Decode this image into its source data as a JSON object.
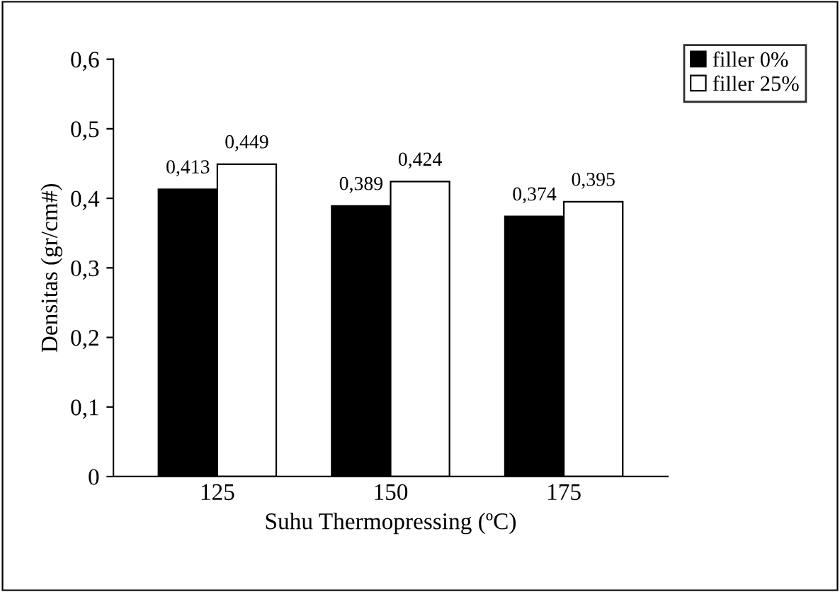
{
  "chart_data": {
    "type": "bar",
    "xlabel": "Suhu Thermopressing (ºC)",
    "ylabel": "Densitas (gr/cm#)",
    "categories": [
      "125",
      "150",
      "175"
    ],
    "series": [
      {
        "name": "filler 0%",
        "color": "#000000",
        "values": [
          0.413,
          0.389,
          0.374
        ],
        "value_labels": [
          "0,413",
          "0,389",
          "0,374"
        ]
      },
      {
        "name": "filler 25%",
        "color": "#ffffff",
        "values": [
          0.449,
          0.424,
          0.395
        ],
        "value_labels": [
          "0,449",
          "0,424",
          "0,395"
        ]
      }
    ],
    "ylim": [
      0,
      0.6
    ],
    "yticks": [
      0,
      {
        "value": 0.1,
        "label": "0,1"
      },
      {
        "value": 0.2,
        "label": "0,2"
      },
      {
        "value": 0.3,
        "label": "0,3"
      },
      {
        "value": 0.4,
        "label": "0,4"
      },
      {
        "value": 0.5,
        "label": "0,5"
      },
      {
        "value": 0.6,
        "label": "0,6"
      }
    ],
    "grid": false,
    "legend": "top right"
  }
}
